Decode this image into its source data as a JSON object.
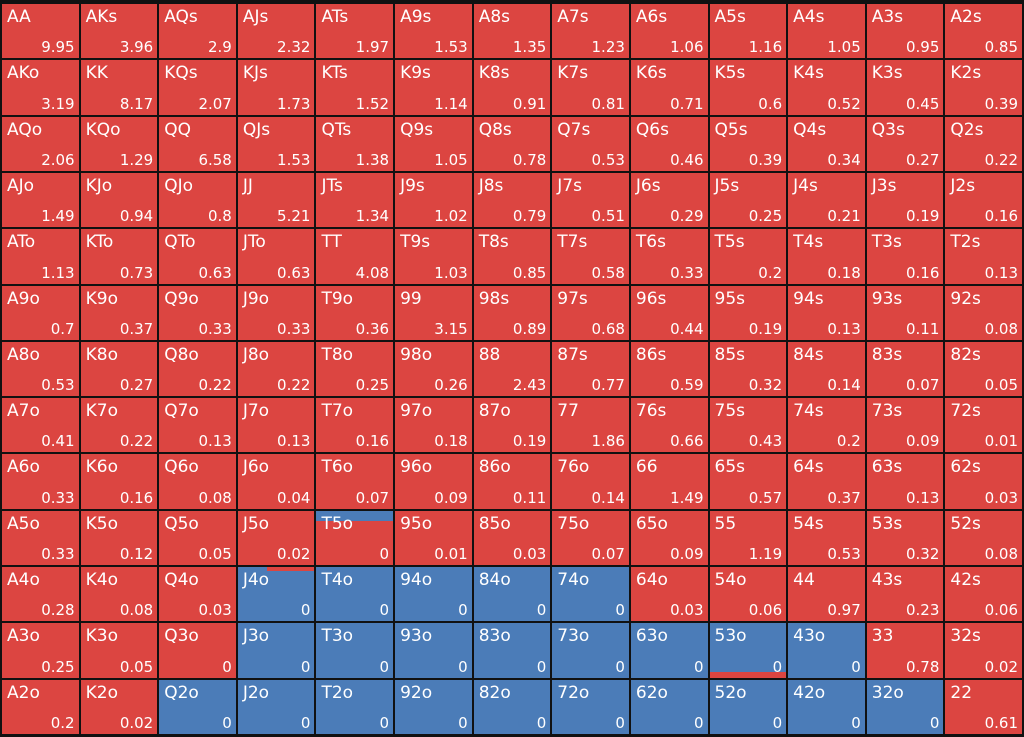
{
  "grid": {
    "palette": {
      "r": "#dc4541",
      "b": "#4b7cb8"
    },
    "fills": [
      "rrrrrrrrrrrrr",
      "rrrrrrrrrrrrr",
      "rrrrrrrrrrrrr",
      "rrrrrrrrrrrrr",
      "rrrrrrrrrrrrr",
      "rrrrrrrrrrrrr",
      "rrrrrrrrrrrrr",
      "rrrrrrrrrrrrr",
      "rrrrrrrrrrrrr",
      "rrrrrrrrrrrrr",
      "rrrbbbbbrrrrr",
      "rrrbbbbbbbbrr",
      "rrbbbbbbbbbbr"
    ],
    "labels": [
      [
        "AA",
        "AKs",
        "AQs",
        "AJs",
        "ATs",
        "A9s",
        "A8s",
        "A7s",
        "A6s",
        "A5s",
        "A4s",
        "A3s",
        "A2s"
      ],
      [
        "AKo",
        "KK",
        "KQs",
        "KJs",
        "KTs",
        "K9s",
        "K8s",
        "K7s",
        "K6s",
        "K5s",
        "K4s",
        "K3s",
        "K2s"
      ],
      [
        "AQo",
        "KQo",
        "QQ",
        "QJs",
        "QTs",
        "Q9s",
        "Q8s",
        "Q7s",
        "Q6s",
        "Q5s",
        "Q4s",
        "Q3s",
        "Q2s"
      ],
      [
        "AJo",
        "KJo",
        "QJo",
        "JJ",
        "JTs",
        "J9s",
        "J8s",
        "J7s",
        "J6s",
        "J5s",
        "J4s",
        "J3s",
        "J2s"
      ],
      [
        "ATo",
        "KTo",
        "QTo",
        "JTo",
        "TT",
        "T9s",
        "T8s",
        "T7s",
        "T6s",
        "T5s",
        "T4s",
        "T3s",
        "T2s"
      ],
      [
        "A9o",
        "K9o",
        "Q9o",
        "J9o",
        "T9o",
        "99",
        "98s",
        "97s",
        "96s",
        "95s",
        "94s",
        "93s",
        "92s"
      ],
      [
        "A8o",
        "K8o",
        "Q8o",
        "J8o",
        "T8o",
        "98o",
        "88",
        "87s",
        "86s",
        "85s",
        "84s",
        "83s",
        "82s"
      ],
      [
        "A7o",
        "K7o",
        "Q7o",
        "J7o",
        "T7o",
        "97o",
        "87o",
        "77",
        "76s",
        "75s",
        "74s",
        "73s",
        "72s"
      ],
      [
        "A6o",
        "K6o",
        "Q6o",
        "J6o",
        "T6o",
        "96o",
        "86o",
        "76o",
        "66",
        "65s",
        "64s",
        "63s",
        "62s"
      ],
      [
        "A5o",
        "K5o",
        "Q5o",
        "J5o",
        "T5o",
        "95o",
        "85o",
        "75o",
        "65o",
        "55",
        "54s",
        "53s",
        "52s"
      ],
      [
        "A4o",
        "K4o",
        "Q4o",
        "J4o",
        "T4o",
        "94o",
        "84o",
        "74o",
        "64o",
        "54o",
        "44",
        "43s",
        "42s"
      ],
      [
        "A3o",
        "K3o",
        "Q3o",
        "J3o",
        "T3o",
        "93o",
        "83o",
        "73o",
        "63o",
        "53o",
        "43o",
        "33",
        "32s"
      ],
      [
        "A2o",
        "K2o",
        "Q2o",
        "J2o",
        "T2o",
        "92o",
        "82o",
        "72o",
        "62o",
        "52o",
        "42o",
        "32o",
        "22"
      ]
    ],
    "values": [
      [
        9.95,
        3.96,
        2.9,
        2.32,
        1.97,
        1.53,
        1.35,
        1.23,
        1.06,
        1.16,
        1.05,
        0.95,
        0.85
      ],
      [
        3.19,
        8.17,
        2.07,
        1.73,
        1.52,
        1.14,
        0.91,
        0.81,
        0.71,
        0.6,
        0.52,
        0.45,
        0.39
      ],
      [
        2.06,
        1.29,
        6.58,
        1.53,
        1.38,
        1.05,
        0.78,
        0.53,
        0.46,
        0.39,
        0.34,
        0.27,
        0.22
      ],
      [
        1.49,
        0.94,
        0.8,
        5.21,
        1.34,
        1.02,
        0.79,
        0.51,
        0.29,
        0.25,
        0.21,
        0.19,
        0.16
      ],
      [
        1.13,
        0.73,
        0.63,
        0.63,
        4.08,
        1.03,
        0.85,
        0.58,
        0.33,
        0.2,
        0.18,
        0.16,
        0.13
      ],
      [
        0.7,
        0.37,
        0.33,
        0.33,
        0.36,
        3.15,
        0.89,
        0.68,
        0.44,
        0.19,
        0.13,
        0.11,
        0.08
      ],
      [
        0.53,
        0.27,
        0.22,
        0.22,
        0.25,
        0.26,
        2.43,
        0.77,
        0.59,
        0.32,
        0.14,
        0.07,
        0.05
      ],
      [
        0.41,
        0.22,
        0.13,
        0.13,
        0.16,
        0.18,
        0.19,
        1.86,
        0.66,
        0.43,
        0.2,
        0.09,
        0.01
      ],
      [
        0.33,
        0.16,
        0.08,
        0.04,
        0.07,
        0.09,
        0.11,
        0.14,
        1.49,
        0.57,
        0.37,
        0.13,
        0.03
      ],
      [
        0.33,
        0.12,
        0.05,
        0.02,
        0,
        0.01,
        0.03,
        0.07,
        0.09,
        1.19,
        0.53,
        0.32,
        0.08
      ],
      [
        0.28,
        0.08,
        0.03,
        0,
        0,
        0,
        0,
        0,
        0.03,
        0.06,
        0.97,
        0.23,
        0.06
      ],
      [
        0.25,
        0.05,
        0,
        0,
        0,
        0,
        0,
        0,
        0,
        0,
        0,
        0.78,
        0.02
      ],
      [
        0.2,
        0.02,
        0,
        0,
        0,
        0,
        0,
        0,
        0,
        0,
        0,
        0,
        0.61
      ]
    ]
  }
}
